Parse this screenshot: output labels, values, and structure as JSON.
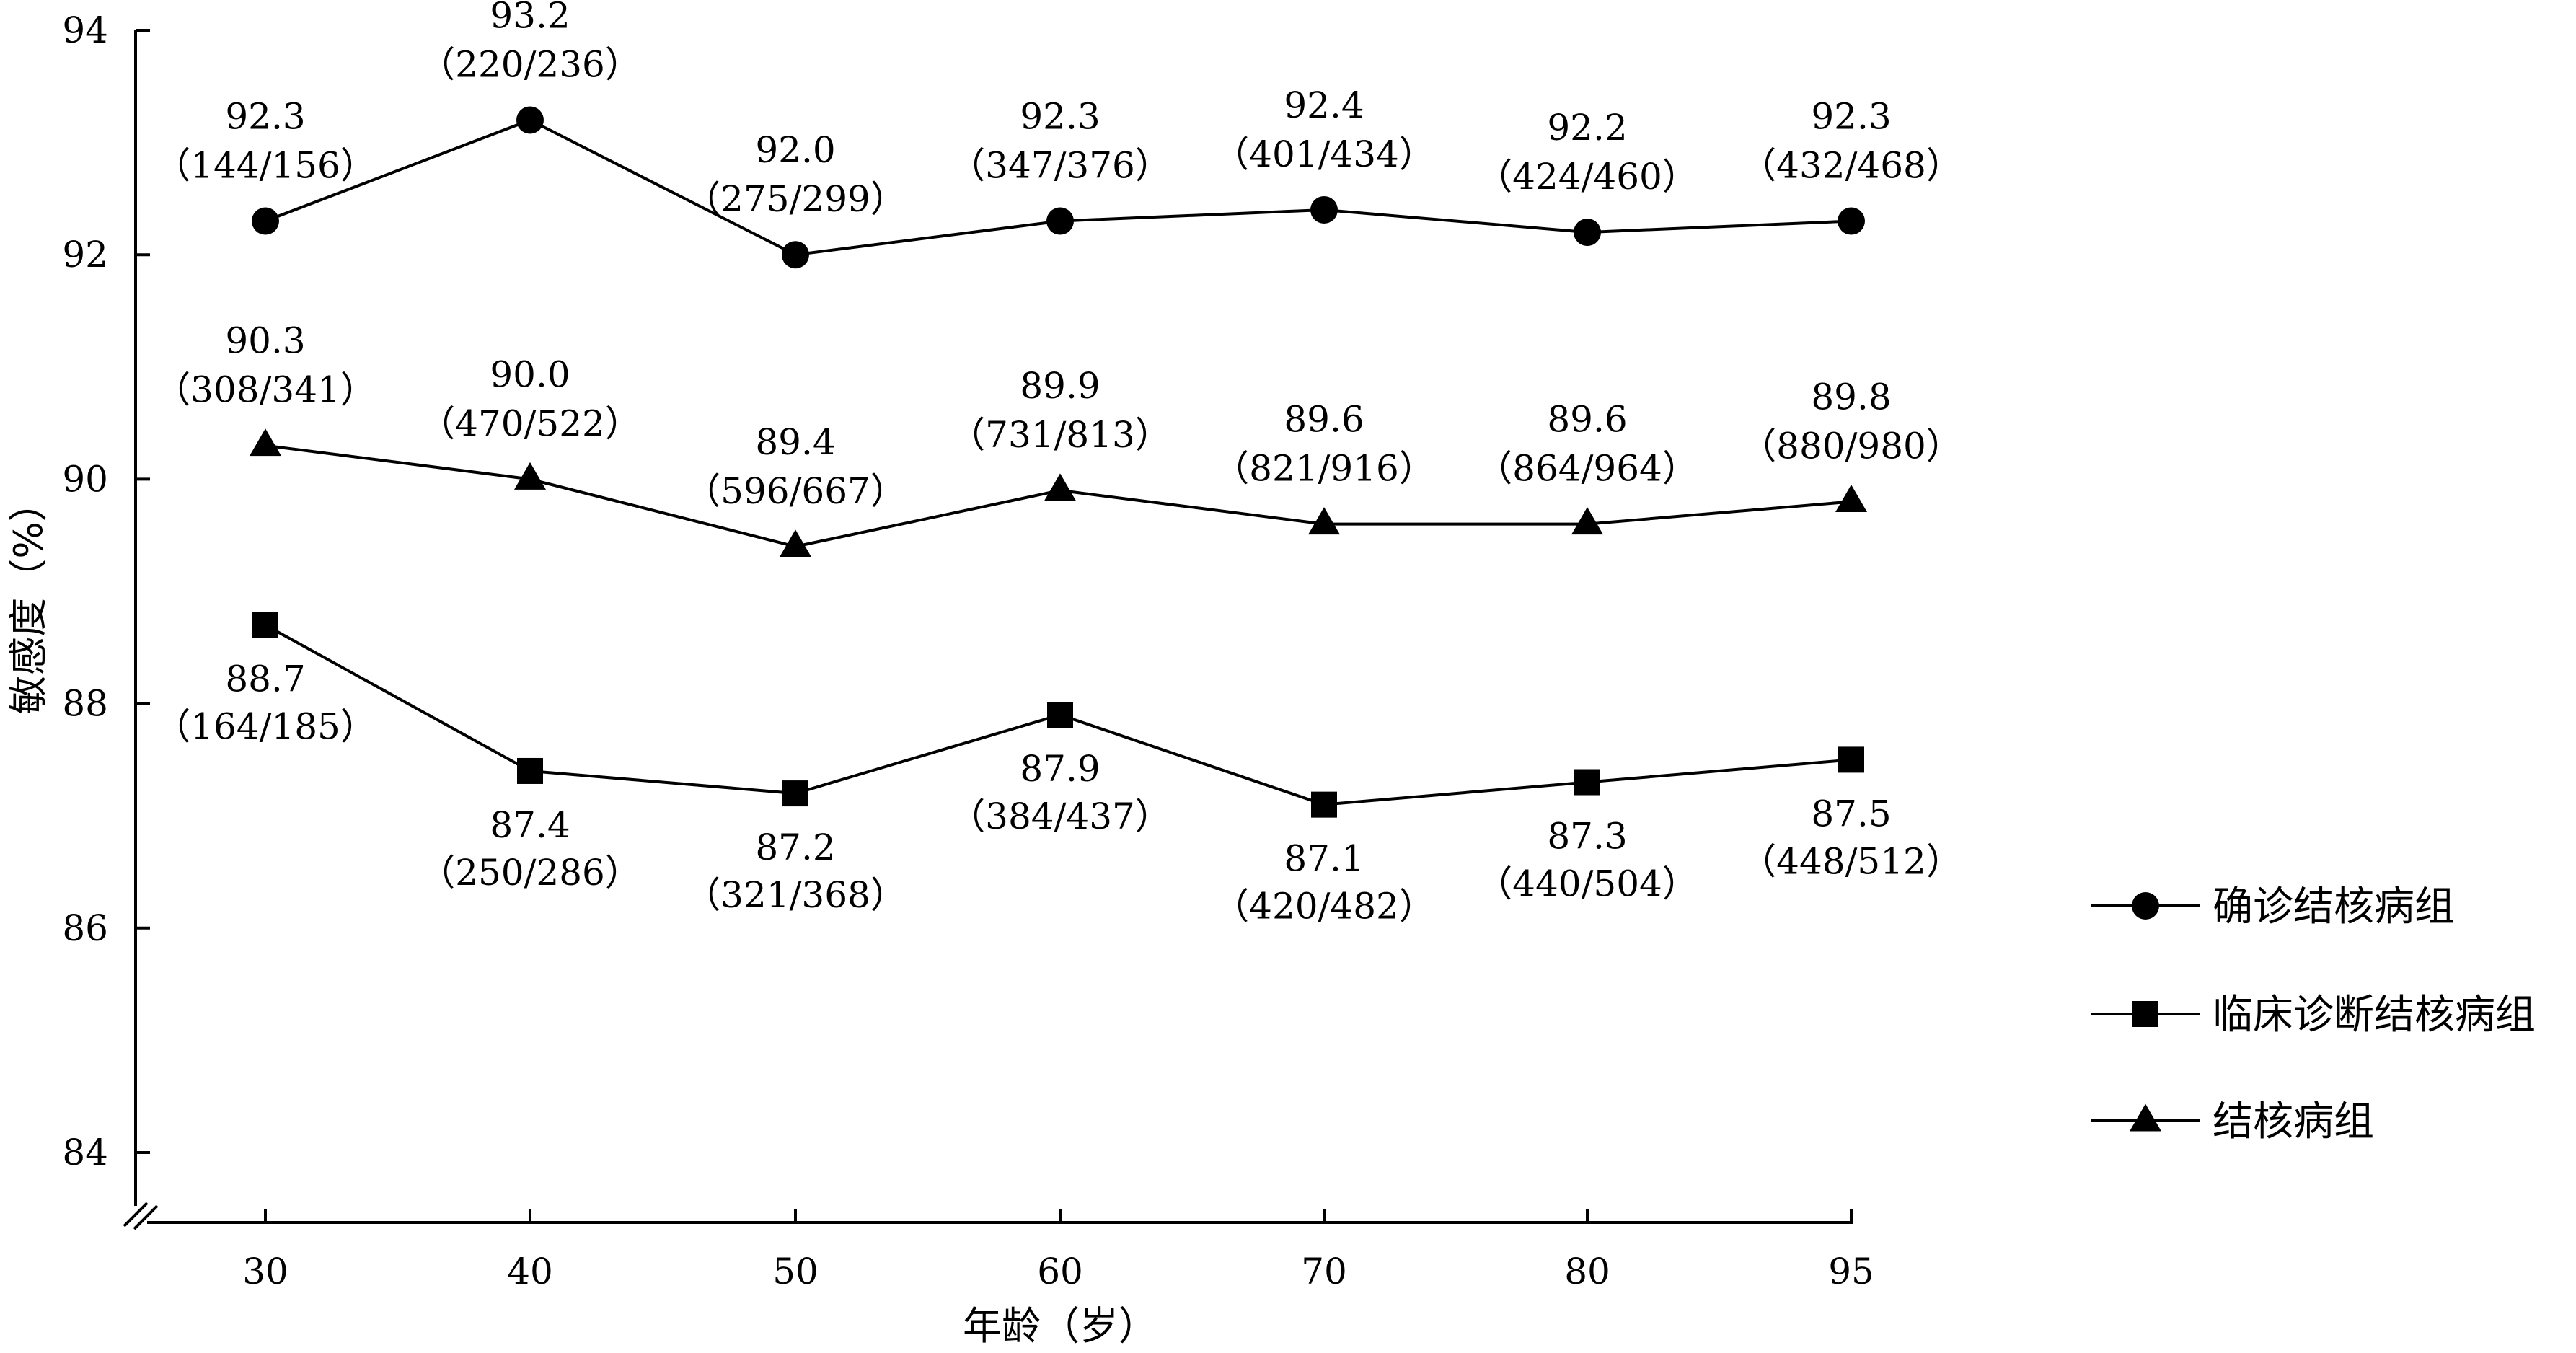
{
  "chart_data": {
    "type": "line",
    "xlabel": "年龄（岁）",
    "ylabel": "敏感度（%）",
    "categories": [
      "30",
      "40",
      "50",
      "60",
      "70",
      "80",
      "95"
    ],
    "ylim": [
      84,
      94
    ],
    "yticks": [
      "84",
      "86",
      "88",
      "90",
      "92",
      "94"
    ],
    "grid": false,
    "legend_position": "right",
    "series": [
      {
        "name": "确诊结核病组",
        "marker": "circle",
        "values": [
          92.3,
          93.2,
          92.0,
          92.3,
          92.4,
          92.2,
          92.3
        ],
        "value_labels": [
          "92.3",
          "93.2",
          "92.0",
          "92.3",
          "92.4",
          "92.2",
          "92.3"
        ],
        "count_labels": [
          "（144/156）",
          "（220/236）",
          "（275/299）",
          "（347/376）",
          "（401/434）",
          "（424/460）",
          "（432/468）"
        ],
        "label_position": "above"
      },
      {
        "name": "临床诊断结核病组",
        "marker": "square",
        "values": [
          88.7,
          87.4,
          87.2,
          87.9,
          87.1,
          87.3,
          87.5
        ],
        "value_labels": [
          "88.7",
          "87.4",
          "87.2",
          "87.9",
          "87.1",
          "87.3",
          "87.5"
        ],
        "count_labels": [
          "（164/185）",
          "（250/286）",
          "（321/368）",
          "（384/437）",
          "（420/482）",
          "（440/504）",
          "（448/512）"
        ],
        "label_position": "below"
      },
      {
        "name": "结核病组",
        "marker": "triangle",
        "values": [
          90.3,
          90.0,
          89.4,
          89.9,
          89.6,
          89.6,
          89.8
        ],
        "value_labels": [
          "90.3",
          "90.0",
          "89.4",
          "89.9",
          "89.6",
          "89.6",
          "89.8"
        ],
        "count_labels": [
          "（308/341）",
          "（470/522）",
          "（596/667）",
          "（731/813）",
          "（821/916）",
          "（864/964）",
          "（880/980）"
        ],
        "label_position": "above"
      }
    ],
    "legend": {
      "items": [
        "确诊结核病组",
        "临床诊断结核病组",
        "结核病组"
      ]
    }
  }
}
